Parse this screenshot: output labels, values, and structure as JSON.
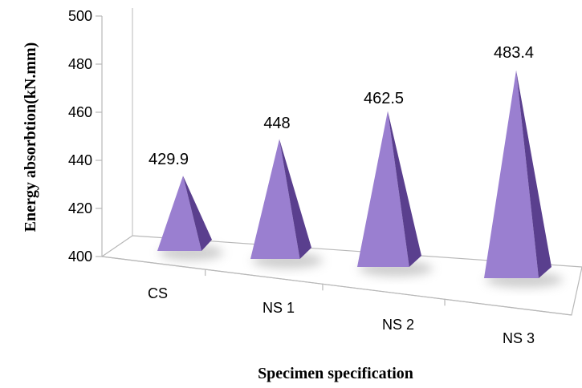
{
  "chart_data": {
    "type": "bar",
    "style": "3d-pyramid",
    "title": "",
    "xlabel": "Specimen specification",
    "ylabel": "Energy absorbtion(kN.mm)",
    "categories": [
      "CS",
      "NS 1",
      "NS 2",
      "NS 3"
    ],
    "values": [
      429.9,
      448,
      462.5,
      483.4
    ],
    "value_labels": [
      "429.9",
      "448",
      "462.5",
      "483.4"
    ],
    "ylim": [
      400,
      500
    ],
    "yticks": [
      400,
      420,
      440,
      460,
      480,
      500
    ],
    "grid": false,
    "legend": "none",
    "colors": {
      "face_light": "#9a7fd0",
      "face_dark": "#5a3f8e",
      "shadow": "#c9c9c9",
      "axis": "#b8b8b8"
    }
  }
}
